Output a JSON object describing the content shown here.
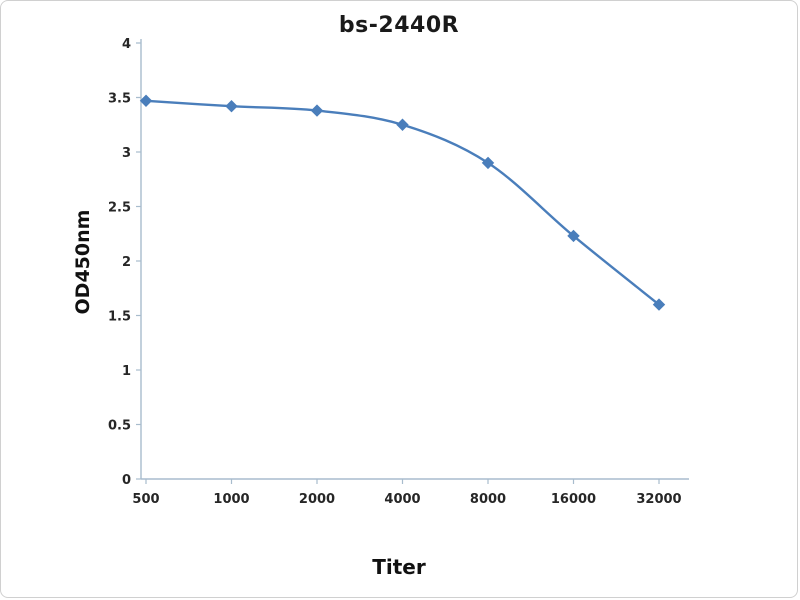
{
  "figure_title": "bs-2440R",
  "chart_data": {
    "type": "line",
    "title": "bs-2440R",
    "xlabel": "Titer",
    "ylabel": "OD450nm",
    "categories": [
      "500",
      "1000",
      "2000",
      "4000",
      "8000",
      "16000",
      "32000"
    ],
    "series": [
      {
        "name": "bs-2440R",
        "values": [
          3.47,
          3.42,
          3.38,
          3.25,
          2.9,
          2.23,
          1.6
        ]
      }
    ],
    "ylim": [
      0,
      4
    ],
    "yticks": [
      0,
      0.5,
      1,
      1.5,
      2,
      2.5,
      3,
      3.5,
      4
    ],
    "ytick_labels": [
      "0",
      "0.5",
      "1",
      "1.5",
      "2",
      "2.5",
      "3",
      "3.5",
      "4"
    ],
    "grid": false,
    "legend_position": "none",
    "line_color": "#4a7ebb",
    "marker": "diamond",
    "marker_color": "#4a7ebb",
    "axis_color": "#a8bccd",
    "text_color": "#262626"
  }
}
